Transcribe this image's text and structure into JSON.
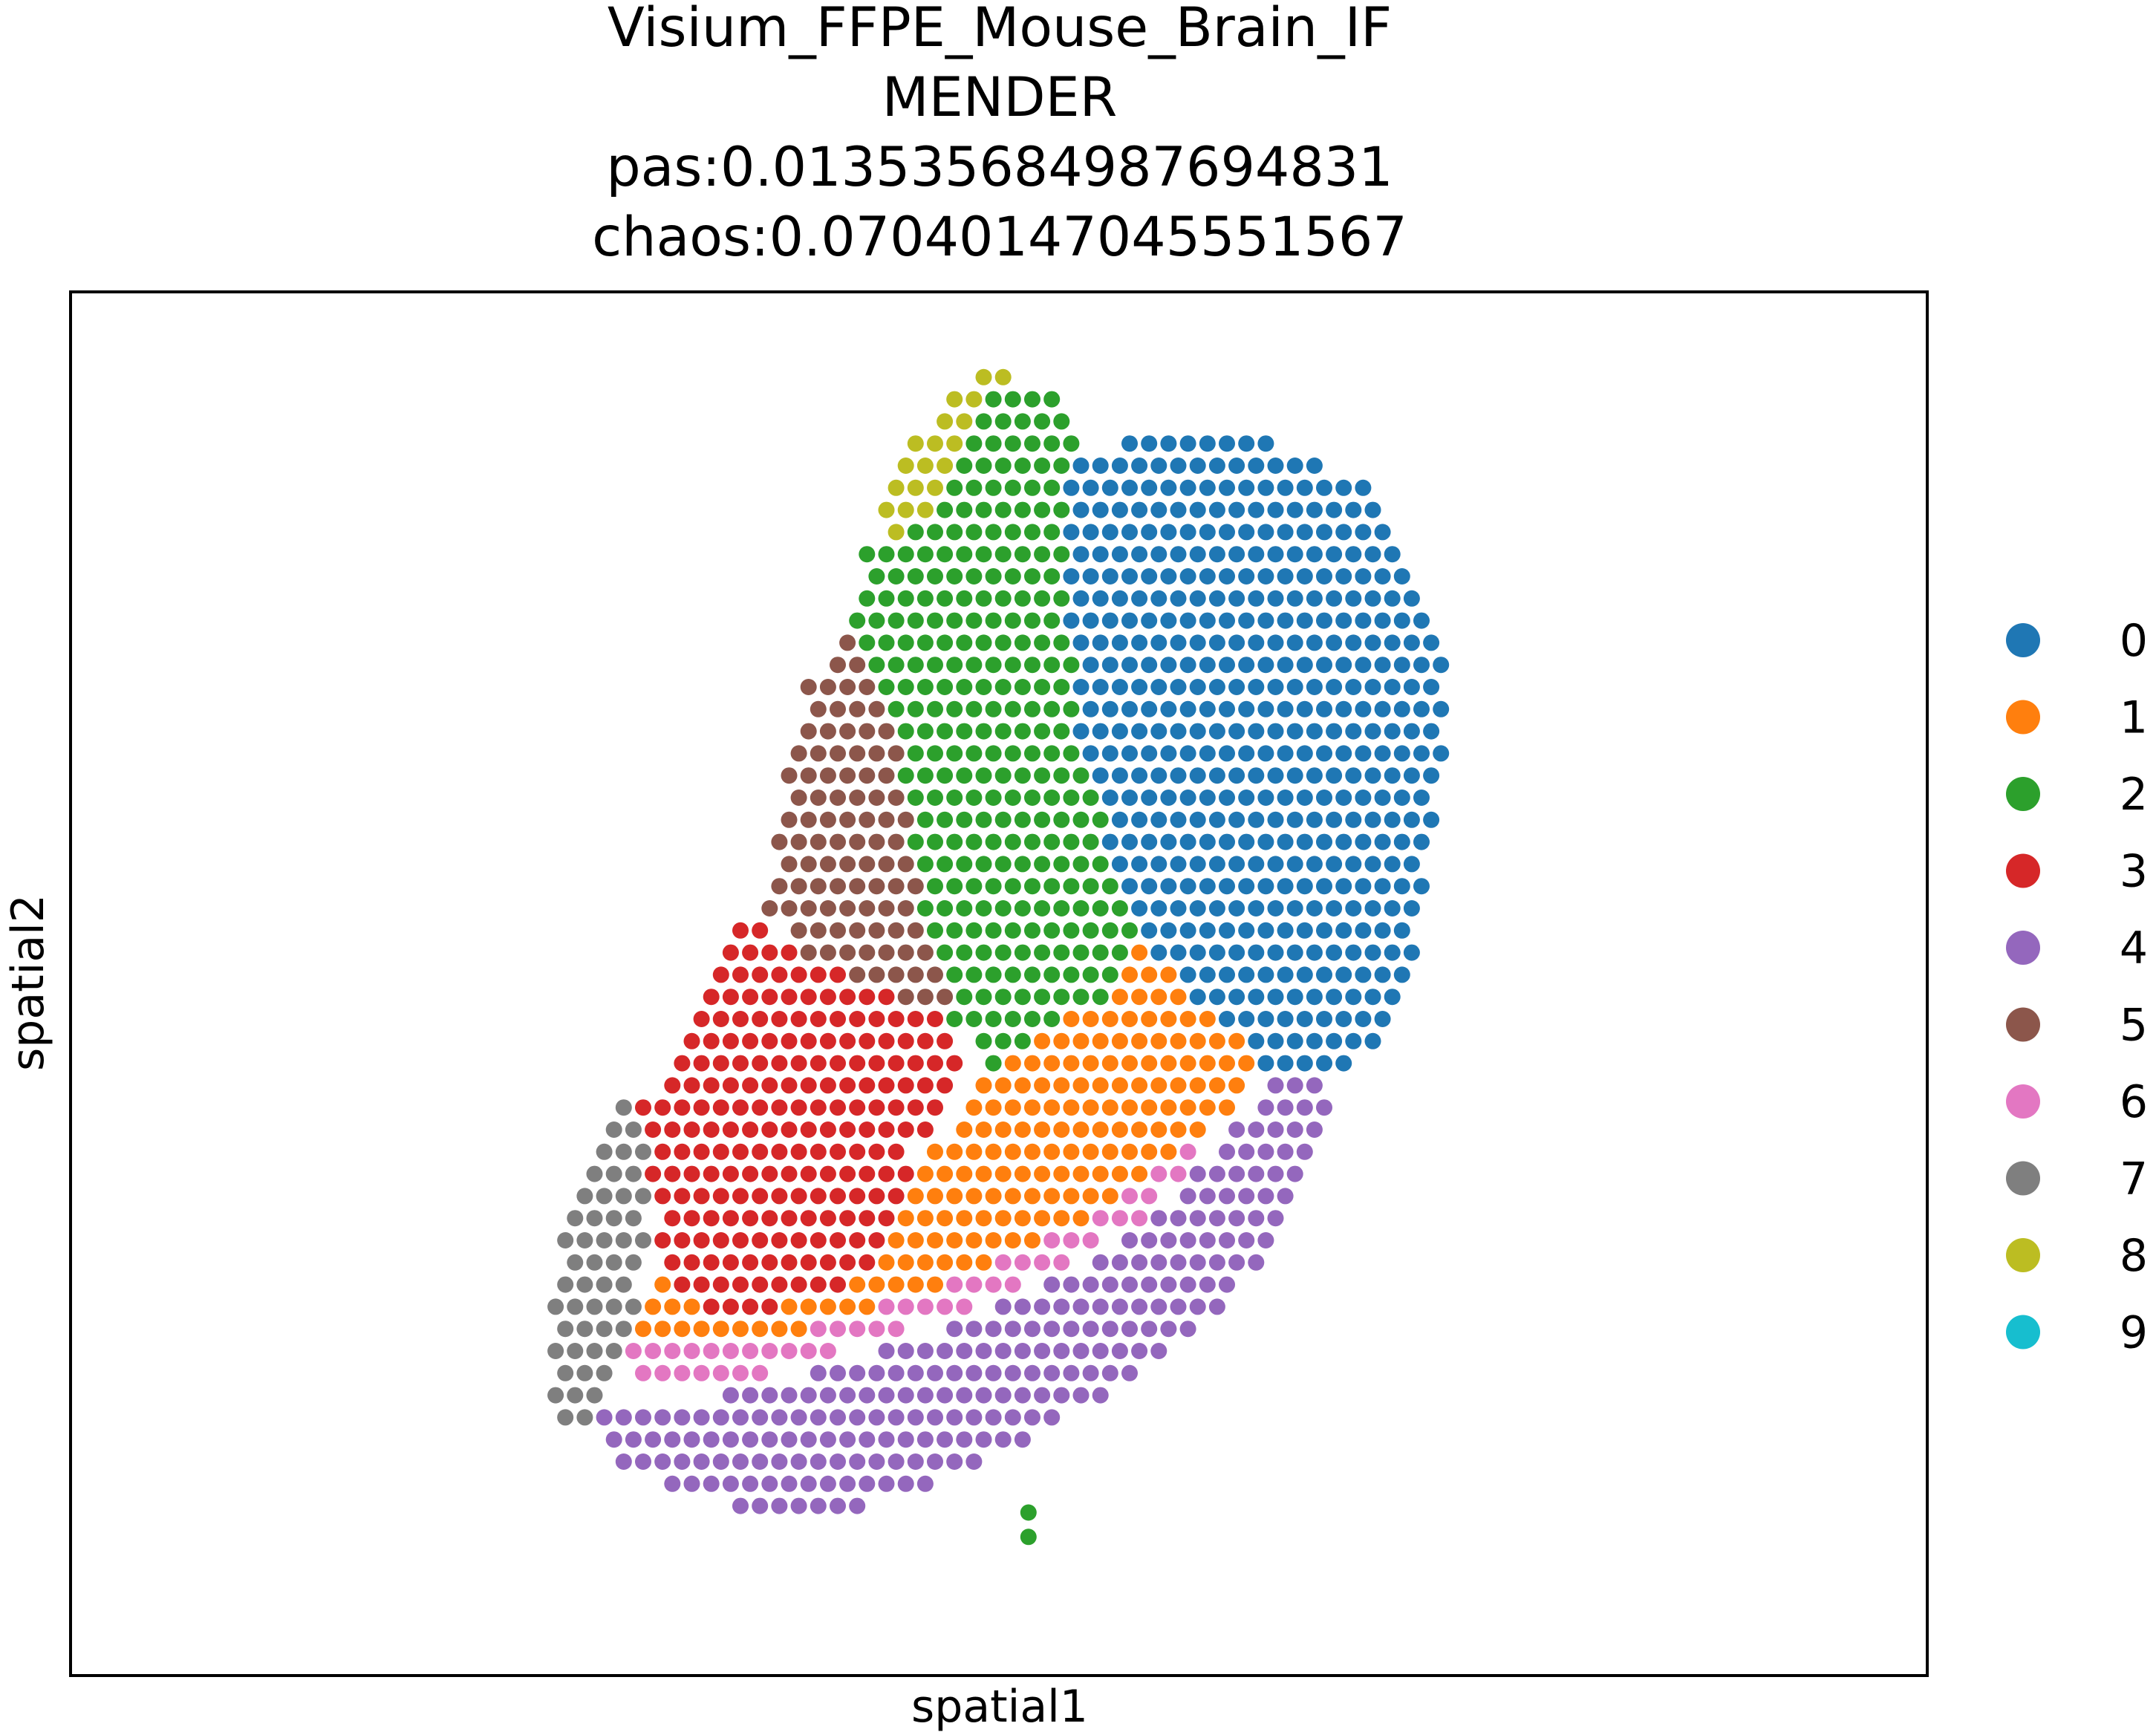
{
  "chart_data": {
    "type": "scatter",
    "title_lines": [
      "Visium_FFPE_Mouse_Brain_IF",
      "MENDER",
      "pas:0.013535684987694831",
      "chaos:0.07040147045551567"
    ],
    "xlabel": "spatial1",
    "ylabel": "spatial2",
    "grid": false,
    "ticks": false,
    "legend_placement": "right",
    "categories": [
      "0",
      "1",
      "2",
      "3",
      "4",
      "5",
      "6",
      "7",
      "8",
      "9"
    ],
    "colors": {
      "0": "#1f77b4",
      "1": "#ff7f0e",
      "2": "#2ca02c",
      "3": "#d62728",
      "4": "#9467bd",
      "5": "#8c564b",
      "6": "#e377c2",
      "7": "#7f7f7f",
      "8": "#bcbd22",
      "9": "#17becf"
    },
    "grid_spec": {
      "row_range": [
        0,
        66
      ],
      "col_range": [
        0,
        68
      ],
      "hex_offset": "odd-rows-half-step"
    },
    "regions": [
      {
        "cluster": "0",
        "polygon": [
          [
            36.8,
            5
          ],
          [
            42,
            3
          ],
          [
            48,
            4
          ],
          [
            52.5,
            6
          ],
          [
            55,
            10
          ],
          [
            56.5,
            15
          ],
          [
            56,
            20
          ],
          [
            55,
            26
          ],
          [
            53,
            31
          ],
          [
            50.5,
            33
          ],
          [
            47,
            32
          ],
          [
            43,
            29
          ],
          [
            40.5,
            26
          ],
          [
            39,
            22
          ],
          [
            37.5,
            18
          ],
          [
            37,
            12
          ]
        ]
      },
      {
        "cluster": "2",
        "polygon": [
          [
            33.5,
            1
          ],
          [
            37,
            2
          ],
          [
            38.2,
            6
          ],
          [
            40.5,
            10
          ],
          [
            43,
            15
          ],
          [
            43.5,
            20
          ],
          [
            42,
            25
          ],
          [
            39,
            29
          ],
          [
            35,
            31
          ],
          [
            33,
            33
          ],
          [
            31,
            30
          ],
          [
            29.5,
            25
          ],
          [
            28.5,
            19
          ],
          [
            27,
            15
          ],
          [
            25.5,
            12
          ],
          [
            26.5,
            9
          ],
          [
            30,
            7
          ],
          [
            31.5,
            4
          ]
        ]
      },
      {
        "cluster": "8",
        "polygon": [
          [
            33.5,
            0
          ],
          [
            35,
            1.5
          ],
          [
            33,
            3
          ],
          [
            31,
            5
          ],
          [
            29.5,
            9
          ],
          [
            28,
            9.5
          ],
          [
            27,
            7
          ],
          [
            29,
            4
          ],
          [
            31,
            2
          ]
        ]
      },
      {
        "cluster": "9",
        "polygon": [
          [
            30,
            4
          ],
          [
            32.5,
            4
          ],
          [
            32.8,
            8
          ],
          [
            31.5,
            10.5
          ],
          [
            30,
            11
          ],
          [
            28.2,
            9.5
          ],
          [
            28.5,
            6.5
          ]
        ]
      },
      {
        "cluster": "5",
        "polygon": [
          [
            25,
            12.5
          ],
          [
            28.5,
            14.5
          ],
          [
            29,
            19
          ],
          [
            30.5,
            25
          ],
          [
            31,
            29
          ],
          [
            29.5,
            30
          ],
          [
            26,
            28
          ],
          [
            23,
            27
          ],
          [
            21.5,
            25
          ],
          [
            22.5,
            19
          ],
          [
            23.5,
            15
          ]
        ]
      },
      {
        "cluster": "3",
        "polygon": [
          [
            20,
            25.5
          ],
          [
            23,
            26.5
          ],
          [
            27,
            27.5
          ],
          [
            30,
            29.5
          ],
          [
            31.5,
            33
          ],
          [
            29,
            36
          ],
          [
            28,
            40
          ],
          [
            25.5,
            42
          ],
          [
            22.5,
            43
          ],
          [
            19,
            43.5
          ],
          [
            16.5,
            42
          ],
          [
            15.5,
            38
          ],
          [
            15,
            34
          ],
          [
            17,
            30.5
          ]
        ]
      },
      {
        "cluster": "7",
        "polygon": [
          [
            14.5,
            33.5
          ],
          [
            15.5,
            36
          ],
          [
            15.5,
            40
          ],
          [
            14.5,
            44
          ],
          [
            13,
            47
          ],
          [
            11.5,
            49
          ],
          [
            10.5,
            47.5
          ],
          [
            10.2,
            42
          ],
          [
            11.5,
            38
          ],
          [
            12.8,
            35
          ]
        ]
      },
      {
        "cluster": "1",
        "polygon": [
          [
            40,
            24
          ],
          [
            43,
            23
          ],
          [
            46,
            24
          ],
          [
            48,
            26
          ],
          [
            48.5,
            29.5
          ],
          [
            47,
            32.5
          ],
          [
            43.5,
            35.5
          ],
          [
            40,
            38
          ],
          [
            36,
            40
          ],
          [
            32,
            41.5
          ],
          [
            27,
            43
          ],
          [
            22,
            44.5
          ],
          [
            17,
            45
          ],
          [
            14.5,
            44
          ],
          [
            15.5,
            41
          ],
          [
            18.5,
            43
          ],
          [
            23,
            43
          ],
          [
            27,
            41
          ],
          [
            29,
            38
          ],
          [
            30,
            36
          ],
          [
            32,
            33
          ],
          [
            35,
            31
          ],
          [
            38,
            29
          ]
        ]
      },
      {
        "cluster": "6",
        "polygon": [
          [
            44.5,
            35
          ],
          [
            43,
            37
          ],
          [
            40,
            39.5
          ],
          [
            36,
            41.5
          ],
          [
            32,
            43
          ],
          [
            27,
            44.5
          ],
          [
            22,
            46
          ],
          [
            17,
            47
          ],
          [
            14.5,
            46.5
          ],
          [
            14.5,
            44.5
          ],
          [
            17,
            45
          ],
          [
            22,
            44.5
          ],
          [
            27,
            43
          ],
          [
            32,
            41.5
          ],
          [
            36,
            40
          ],
          [
            40,
            38
          ],
          [
            43.5,
            35.5
          ]
        ]
      },
      {
        "cluster": "4",
        "polygon": [
          [
            50,
            32.5
          ],
          [
            51,
            34
          ],
          [
            49,
            38
          ],
          [
            46,
            42
          ],
          [
            42,
            45
          ],
          [
            37,
            48
          ],
          [
            32,
            50.5
          ],
          [
            27,
            52
          ],
          [
            22,
            52.5
          ],
          [
            17,
            51.5
          ],
          [
            14,
            50
          ],
          [
            12,
            48.5
          ],
          [
            13.5,
            47.5
          ],
          [
            17,
            47.5
          ],
          [
            22,
            46.5
          ],
          [
            27,
            45
          ],
          [
            32,
            43.5
          ],
          [
            36,
            42
          ],
          [
            40,
            40
          ],
          [
            43,
            37.5
          ],
          [
            45,
            35
          ],
          [
            47.5,
            33
          ]
        ]
      }
    ],
    "outliers": [
      {
        "cluster": "2",
        "points": [
          [
            34.8,
            52.3
          ],
          [
            34.8,
            53.4
          ]
        ]
      }
    ]
  }
}
